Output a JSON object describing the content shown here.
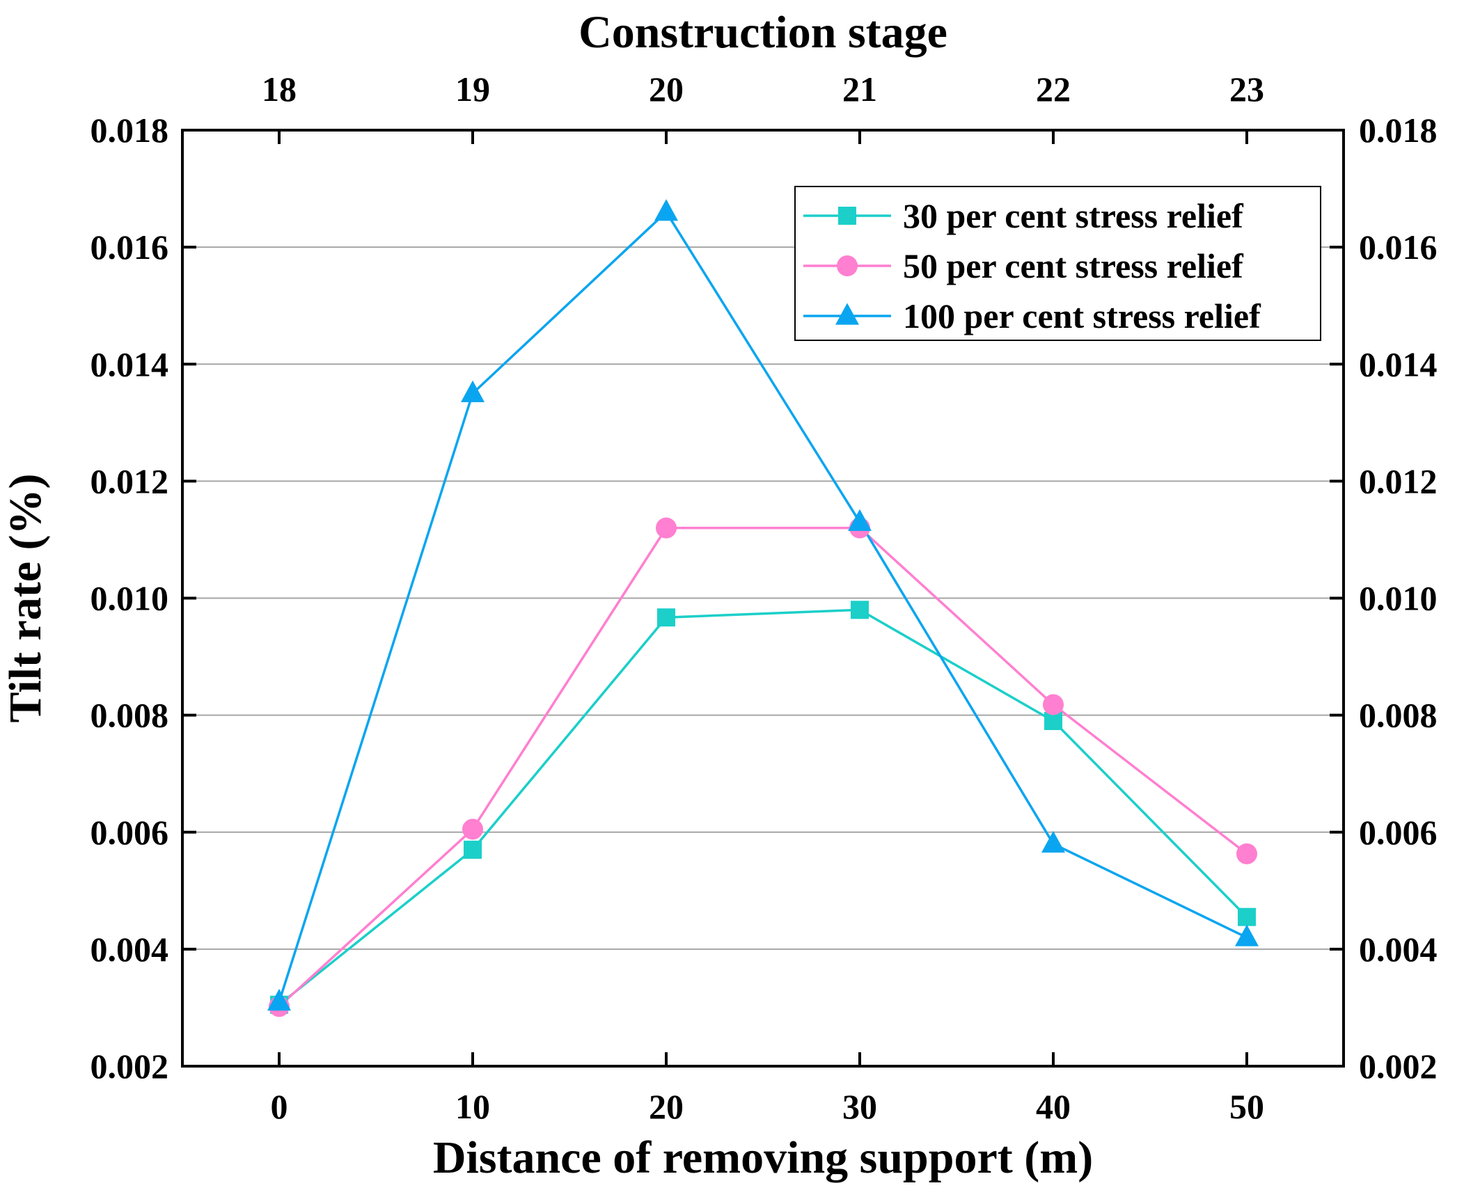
{
  "chart_data": {
    "type": "line",
    "title": "",
    "xlabel": "Distance of removing support (m)",
    "ylabel": "Tilt rate (%)",
    "top_xlabel": "Construction stage",
    "x": [
      0,
      10,
      20,
      30,
      40,
      50
    ],
    "x_tick_labels": [
      "0",
      "10",
      "20",
      "30",
      "40",
      "50"
    ],
    "top_tick_labels": [
      "18",
      "19",
      "20",
      "21",
      "22",
      "23"
    ],
    "xlim": [
      -5,
      55
    ],
    "ylim": [
      0.002,
      0.018
    ],
    "y_ticks": [
      0.002,
      0.004,
      0.006,
      0.008,
      0.01,
      0.012,
      0.014,
      0.016,
      0.018
    ],
    "y_tick_labels": [
      "0.002",
      "0.004",
      "0.006",
      "0.008",
      "0.010",
      "0.012",
      "0.014",
      "0.016",
      "0.018"
    ],
    "grid": "horizontal",
    "legend_position": "top-right",
    "series": [
      {
        "name": "30 per cent stress relief",
        "color": "#1ccfc9",
        "marker": "square",
        "values": [
          0.00305,
          0.0057,
          0.00967,
          0.0098,
          0.0079,
          0.00455
        ]
      },
      {
        "name": "50 per cent stress relief",
        "color": "#ff7fd0",
        "marker": "circle",
        "values": [
          0.00302,
          0.00605,
          0.0112,
          0.0112,
          0.00818,
          0.00563
        ]
      },
      {
        "name": "100 per cent stress relief",
        "color": "#0aa5f0",
        "marker": "triangle",
        "values": [
          0.0031,
          0.0135,
          0.0166,
          0.0113,
          0.0058,
          0.0042
        ]
      }
    ]
  }
}
